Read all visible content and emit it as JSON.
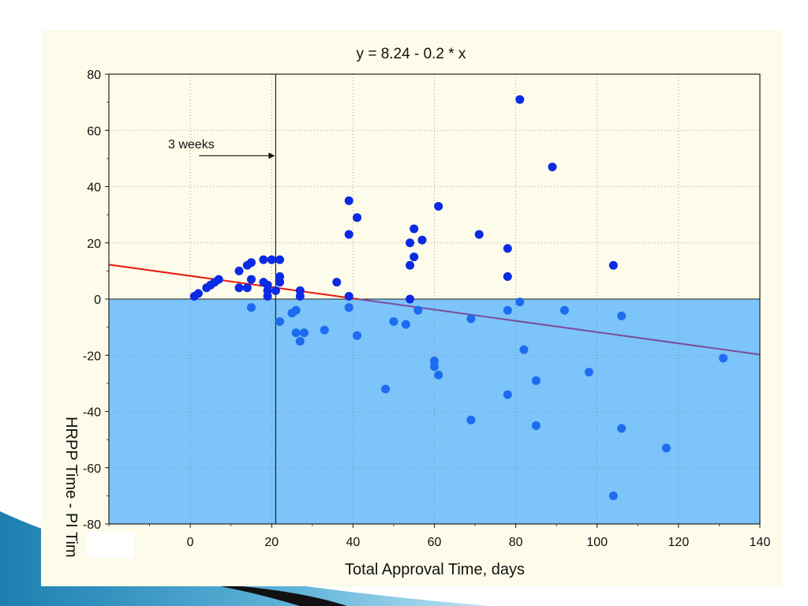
{
  "chart_data": {
    "type": "scatter",
    "title": "y = 8.24 - 0.2 * x",
    "xlabel": "Total Approval Time, days",
    "ylabel": "HRPP Time - PI Tim",
    "xlim": [
      -20,
      140
    ],
    "ylim": [
      -80,
      80
    ],
    "xticks": [
      "0",
      "20",
      "40",
      "60",
      "80",
      "100",
      "120",
      "140"
    ],
    "yticks": [
      "80",
      "60",
      "40",
      "20",
      "0",
      "-20",
      "-40",
      "-60",
      "-80"
    ],
    "grid": true,
    "shaded_region": {
      "y_from": -80,
      "y_to": 0,
      "color": "#7cc4f9"
    },
    "regression": {
      "intercept": 8.24,
      "slope": -0.2,
      "color_above": "#e8180c",
      "color_below": "#7a4c9a"
    },
    "reference_line": {
      "x": 21
    },
    "annotation": {
      "text": "3 weeks",
      "arrow_from_x": 1,
      "arrow_to_x": 21,
      "y": 51
    },
    "point_color": "#0b2ae6",
    "point_color_below": "#1d6cf0",
    "points": [
      [
        1,
        1
      ],
      [
        2,
        2
      ],
      [
        4,
        4
      ],
      [
        5,
        5
      ],
      [
        6,
        6
      ],
      [
        7,
        7
      ],
      [
        12,
        10
      ],
      [
        12,
        4
      ],
      [
        14,
        12
      ],
      [
        14,
        4
      ],
      [
        15,
        13
      ],
      [
        15,
        7
      ],
      [
        15,
        -3
      ],
      [
        18,
        14
      ],
      [
        18,
        6
      ],
      [
        19,
        5
      ],
      [
        19,
        1
      ],
      [
        19,
        3
      ],
      [
        20,
        14
      ],
      [
        21,
        3
      ],
      [
        22,
        14
      ],
      [
        22,
        8
      ],
      [
        22,
        6
      ],
      [
        22,
        -8
      ],
      [
        25,
        -5
      ],
      [
        26,
        -4
      ],
      [
        26,
        -12
      ],
      [
        27,
        3
      ],
      [
        27,
        1
      ],
      [
        27,
        -15
      ],
      [
        28,
        -12
      ],
      [
        33,
        -11
      ],
      [
        36,
        6
      ],
      [
        39,
        35
      ],
      [
        39,
        23
      ],
      [
        39,
        1
      ],
      [
        39,
        -3
      ],
      [
        41,
        29
      ],
      [
        41,
        -13
      ],
      [
        48,
        -32
      ],
      [
        50,
        -8
      ],
      [
        53,
        -9
      ],
      [
        54,
        20
      ],
      [
        54,
        12
      ],
      [
        54,
        0
      ],
      [
        55,
        25
      ],
      [
        55,
        15
      ],
      [
        56,
        -4
      ],
      [
        57,
        21
      ],
      [
        60,
        -22
      ],
      [
        60,
        -24
      ],
      [
        61,
        33
      ],
      [
        61,
        -27
      ],
      [
        69,
        -7
      ],
      [
        69,
        -43
      ],
      [
        71,
        23
      ],
      [
        78,
        18
      ],
      [
        78,
        8
      ],
      [
        78,
        -4
      ],
      [
        78,
        -34
      ],
      [
        81,
        71
      ],
      [
        81,
        -1
      ],
      [
        82,
        -18
      ],
      [
        85,
        -29
      ],
      [
        85,
        -45
      ],
      [
        89,
        47
      ],
      [
        92,
        -4
      ],
      [
        98,
        -26
      ],
      [
        104,
        12
      ],
      [
        104,
        -70
      ],
      [
        106,
        -6
      ],
      [
        106,
        -46
      ],
      [
        117,
        -53
      ],
      [
        131,
        -21
      ]
    ]
  }
}
